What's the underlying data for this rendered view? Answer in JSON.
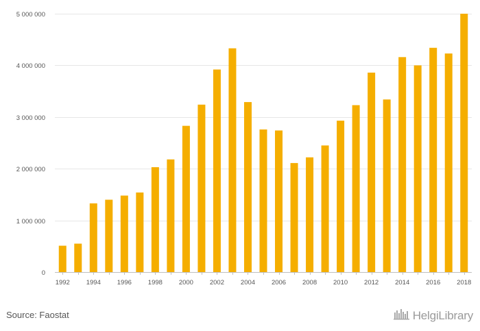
{
  "chart_data": {
    "type": "bar",
    "categories": [
      "1992",
      "1993",
      "1994",
      "1995",
      "1996",
      "1997",
      "1998",
      "1999",
      "2000",
      "2001",
      "2002",
      "2003",
      "2004",
      "2005",
      "2006",
      "2007",
      "2008",
      "2009",
      "2010",
      "2011",
      "2012",
      "2013",
      "2014",
      "2015",
      "2016",
      "2017",
      "2018"
    ],
    "x_tick_labels": [
      "1992",
      "1994",
      "1996",
      "1998",
      "2000",
      "2002",
      "2004",
      "2006",
      "2008",
      "2010",
      "2012",
      "2014",
      "2016",
      "2018"
    ],
    "values": [
      510000,
      550000,
      1330000,
      1400000,
      1480000,
      1540000,
      2030000,
      2180000,
      2830000,
      3240000,
      3920000,
      4330000,
      3290000,
      2760000,
      2740000,
      2110000,
      2220000,
      2450000,
      2930000,
      3230000,
      3860000,
      3340000,
      4160000,
      4000000,
      4340000,
      4230000,
      5000000
    ],
    "y_tick_labels": [
      "0",
      "1 000 000",
      "2 000 000",
      "3 000 000",
      "4 000 000",
      "5 000 000"
    ],
    "ylim": [
      0,
      5000000
    ],
    "y_ticks": [
      0,
      1000000,
      2000000,
      3000000,
      4000000,
      5000000
    ],
    "grid": true,
    "bar_color": "#F5AE00",
    "title": "",
    "xlabel": "",
    "ylabel": ""
  },
  "footer": {
    "source": "Source: Faostat",
    "brand": "HelgiLibrary",
    "brand_icon": "city-skyline-icon"
  }
}
